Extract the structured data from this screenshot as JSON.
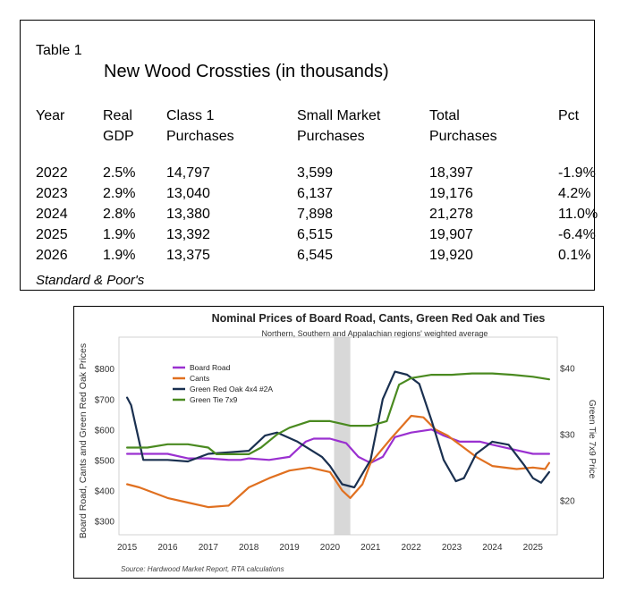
{
  "table": {
    "label": "Table 1",
    "title": "New Wood Crossties (in thousands)",
    "headers": [
      [
        "Year"
      ],
      [
        "Real",
        "GDP"
      ],
      [
        "Class 1",
        "Purchases"
      ],
      [
        "Small Market",
        "Purchases"
      ],
      [
        "Total",
        "Purchases"
      ],
      [
        "Pct"
      ]
    ],
    "rows": [
      [
        "2022",
        "2.5%",
        "14,797",
        "3,599",
        "18,397",
        "-1.9%"
      ],
      [
        "2023",
        "2.9%",
        "13,040",
        "6,137",
        "19,176",
        "4.2%"
      ],
      [
        "2024",
        "2.8%",
        "13,380",
        "7,898",
        "21,278",
        "11.0%"
      ],
      [
        "2025",
        "1.9%",
        "13,392",
        "6,515",
        "19,907",
        "-6.4%"
      ],
      [
        "2026",
        "1.9%",
        "13,375",
        "6,545",
        "19,920",
        "0.1%"
      ]
    ],
    "source": "Standard & Poor's"
  },
  "chart_data": {
    "type": "line",
    "title": "Nominal Prices of Board Road, Cants, Green Red Oak and Ties",
    "subtitle": "Northern, Southern and Appalachian regions' weighted average",
    "ylabel": "Board Road, Cants and Green Red Oak Prices",
    "y2label": "Green Tie 7x9 Price",
    "source": "Source: Hardwood Market Report, RTA calculations",
    "xlim": [
      2014.8,
      2025.6
    ],
    "ylim": [
      260,
      880
    ],
    "y2lim": [
      15.1,
      43.6
    ],
    "x_ticks": [
      2015,
      2016,
      2017,
      2018,
      2019,
      2020,
      2021,
      2022,
      2023,
      2024,
      2025
    ],
    "y_ticks": [
      300,
      400,
      500,
      600,
      700,
      800
    ],
    "y_tick_labels": [
      "$300",
      "$400",
      "$500",
      "$600",
      "$700",
      "$800"
    ],
    "y2_ticks": [
      20,
      30,
      40
    ],
    "y2_tick_labels": [
      "$20",
      "$30",
      "$40"
    ],
    "shaded_region": [
      2020.1,
      2020.5
    ],
    "legend_position": "top-left",
    "series": [
      {
        "name": "Board Road",
        "color": "#9a30d0",
        "axis": "left",
        "x": [
          2015.0,
          2016.0,
          2016.5,
          2017.0,
          2017.5,
          2017.8,
          2018.0,
          2018.5,
          2019.0,
          2019.4,
          2019.6,
          2020.0,
          2020.4,
          2020.7,
          2021.0,
          2021.3,
          2021.6,
          2022.0,
          2022.5,
          2022.8,
          2023.2,
          2023.7,
          2024.0,
          2024.5,
          2025.0,
          2025.4
        ],
        "y": [
          520,
          520,
          505,
          505,
          500,
          500,
          505,
          500,
          510,
          560,
          570,
          570,
          555,
          510,
          490,
          510,
          575,
          590,
          600,
          580,
          560,
          560,
          550,
          535,
          520,
          520
        ]
      },
      {
        "name": "Cants",
        "color": "#e07020",
        "axis": "left",
        "x": [
          2015.0,
          2015.3,
          2016.0,
          2016.5,
          2017.0,
          2017.5,
          2018.0,
          2018.5,
          2019.0,
          2019.5,
          2020.0,
          2020.3,
          2020.5,
          2020.8,
          2021.0,
          2021.5,
          2022.0,
          2022.3,
          2022.6,
          2022.9,
          2023.2,
          2023.6,
          2024.0,
          2024.6,
          2025.0,
          2025.3,
          2025.4
        ],
        "y": [
          420,
          410,
          375,
          360,
          345,
          350,
          410,
          440,
          465,
          475,
          460,
          400,
          375,
          420,
          490,
          570,
          645,
          640,
          600,
          580,
          550,
          510,
          480,
          470,
          475,
          470,
          490
        ]
      },
      {
        "name": "Green Red Oak 4x4 #2A",
        "color": "#1a3050",
        "axis": "left",
        "x": [
          2015.0,
          2015.1,
          2015.4,
          2016.0,
          2016.5,
          2017.0,
          2017.5,
          2018.0,
          2018.4,
          2018.7,
          2019.2,
          2019.8,
          2020.0,
          2020.3,
          2020.6,
          2021.0,
          2021.3,
          2021.6,
          2021.9,
          2022.2,
          2022.5,
          2022.8,
          2023.1,
          2023.3,
          2023.6,
          2024.0,
          2024.4,
          2024.8,
          2025.0,
          2025.2,
          2025.4
        ],
        "y": [
          705,
          680,
          500,
          500,
          495,
          520,
          525,
          530,
          580,
          590,
          560,
          510,
          480,
          420,
          410,
          500,
          700,
          790,
          780,
          750,
          630,
          500,
          430,
          440,
          520,
          560,
          550,
          480,
          440,
          425,
          460
        ]
      },
      {
        "name": "Green Tie 7x9",
        "color": "#4a8a20",
        "axis": "right",
        "x": [
          2015.0,
          2015.5,
          2016.0,
          2016.5,
          2017.0,
          2017.2,
          2017.5,
          2018.0,
          2018.3,
          2018.7,
          2019.0,
          2019.5,
          2020.0,
          2020.5,
          2021.0,
          2021.4,
          2021.7,
          2022.0,
          2022.5,
          2023.0,
          2023.5,
          2024.0,
          2024.5,
          2025.0,
          2025.4
        ],
        "y": [
          28.0,
          28.0,
          28.5,
          28.5,
          28.0,
          27.0,
          27.0,
          27.0,
          28.0,
          30.0,
          31.0,
          32.0,
          32.0,
          31.3,
          31.3,
          32.0,
          37.5,
          38.5,
          39.0,
          39.0,
          39.2,
          39.2,
          39.0,
          38.7,
          38.3
        ]
      }
    ]
  }
}
